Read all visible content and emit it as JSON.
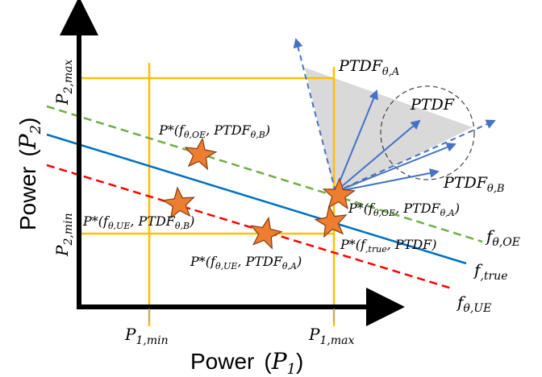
{
  "axes": {
    "x_title": "Power",
    "x_symbol_main": "P",
    "x_symbol_sub": "1",
    "y_title": "Power",
    "y_symbol_main": "P",
    "y_symbol_sub": "2"
  },
  "ticks": {
    "p1_min": {
      "main": "P",
      "sub": "1,min"
    },
    "p1_max": {
      "main": "P",
      "sub": "1,max"
    },
    "p2_min": {
      "main": "P",
      "sub": "2,min"
    },
    "p2_max": {
      "main": "P",
      "sub": "2,max"
    }
  },
  "lines": {
    "f_oe": {
      "main": "f",
      "sub": "θ,OE",
      "color": "#70ad47"
    },
    "f_true": {
      "main": "f",
      "sub": ",true",
      "color": "#0070c0"
    },
    "f_ue": {
      "main": "f",
      "sub": "θ,UE",
      "color": "#ff0000"
    }
  },
  "ptdf": {
    "center": "PTDF",
    "a": {
      "main": "PTDF",
      "sub": "θ,A"
    },
    "b": {
      "main": "PTDF",
      "sub": "θ,B"
    },
    "arrow_color": "#4472c4",
    "region_color": "#d9d9d9"
  },
  "points": {
    "oe_b": {
      "prefix": "P*(",
      "f": "f",
      "fsub": "θ,OE",
      "mid": ", ",
      "ptdf": "PTDF",
      "psub": "θ,B",
      "close": ")"
    },
    "ue_b": {
      "prefix": "P*(",
      "f": "f",
      "fsub": "θ,UE",
      "mid": ", ",
      "ptdf": "PTDF",
      "psub": "θ,B",
      "close": ")"
    },
    "ue_a": {
      "prefix": "P*(",
      "f": "f",
      "fsub": "θ,UE",
      "mid": ", ",
      "ptdf": "PTDF",
      "psub": "θ,A",
      "close": ")"
    },
    "oe_a": {
      "prefix": "P*(",
      "f": "f",
      "fsub": "θ,OE",
      "mid": ", ",
      "ptdf": "PTDF",
      "psub": "θ,A",
      "close": ")"
    },
    "true": {
      "prefix": "P*(",
      "f": "f",
      "fsub": ",true",
      "mid": ", ",
      "ptdf": "PTDF",
      "psub": "",
      "close": ")"
    },
    "star_color": "#ed7d31"
  },
  "limit_color": "#ffc000"
}
